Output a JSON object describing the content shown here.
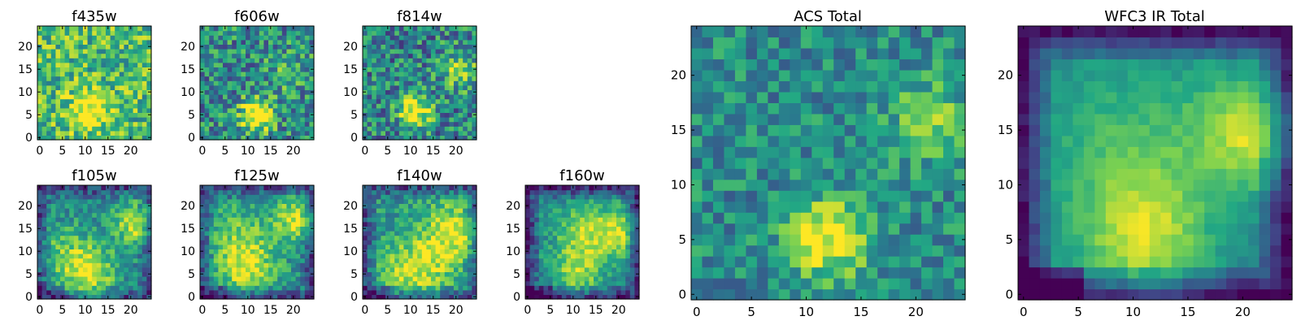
{
  "figure": {
    "colormap": "viridis",
    "colormap_stops": [
      "#440154",
      "#414487",
      "#2a788e",
      "#22a884",
      "#7ad151",
      "#fde725"
    ]
  },
  "chart_data": [
    {
      "type": "heatmap",
      "title": "f435w",
      "grid_size": 25,
      "xticks": [
        "0",
        "5",
        "10",
        "15",
        "20"
      ],
      "yticks": [
        "0",
        "5",
        "10",
        "15",
        "20"
      ],
      "xlim": [
        0,
        25
      ],
      "ylim": [
        0,
        25
      ],
      "grid": false,
      "hotspots": [
        [
          11,
          6,
          3,
          0.45
        ]
      ],
      "base": 0.68,
      "noise": 0.28,
      "edge_falloff": 0.0,
      "seed": 11
    },
    {
      "type": "heatmap",
      "title": "f606w",
      "grid_size": 25,
      "xticks": [
        "0",
        "5",
        "10",
        "15",
        "20"
      ],
      "yticks": [
        "0",
        "5",
        "10",
        "15",
        "20"
      ],
      "xlim": [
        0,
        25
      ],
      "ylim": [
        0,
        25
      ],
      "grid": false,
      "hotspots": [
        [
          12,
          5,
          2.5,
          0.7
        ],
        [
          19,
          15,
          3,
          0.2
        ]
      ],
      "base": 0.48,
      "noise": 0.3,
      "edge_falloff": 0.0,
      "seed": 23
    },
    {
      "type": "heatmap",
      "title": "f814w",
      "grid_size": 25,
      "xticks": [
        "0",
        "5",
        "10",
        "15",
        "20"
      ],
      "yticks": [
        "0",
        "5",
        "10",
        "15",
        "20"
      ],
      "xlim": [
        0,
        25
      ],
      "ylim": [
        0,
        25
      ],
      "grid": false,
      "hotspots": [
        [
          11,
          6,
          2.5,
          0.65
        ],
        [
          21,
          15,
          3,
          0.35
        ]
      ],
      "base": 0.45,
      "noise": 0.3,
      "edge_falloff": 0.0,
      "seed": 37
    },
    {
      "type": "heatmap",
      "title": "f105w",
      "grid_size": 25,
      "xticks": [
        "0",
        "5",
        "10",
        "15",
        "20"
      ],
      "yticks": [
        "0",
        "5",
        "10",
        "15",
        "20"
      ],
      "xlim": [
        0,
        25
      ],
      "ylim": [
        0,
        25
      ],
      "grid": false,
      "hotspots": [
        [
          11,
          5,
          4,
          0.45
        ],
        [
          21,
          16,
          3.5,
          0.45
        ],
        [
          6,
          10,
          5,
          0.25
        ]
      ],
      "base": 0.45,
      "noise": 0.18,
      "edge_falloff": 0.25,
      "seed": 41
    },
    {
      "type": "heatmap",
      "title": "f125w",
      "grid_size": 25,
      "xticks": [
        "0",
        "5",
        "10",
        "15",
        "20"
      ],
      "yticks": [
        "0",
        "5",
        "10",
        "15",
        "20"
      ],
      "xlim": [
        0,
        25
      ],
      "ylim": [
        0,
        25
      ],
      "grid": false,
      "hotspots": [
        [
          10,
          6,
          4,
          0.4
        ],
        [
          21,
          17,
          3.5,
          0.45
        ],
        [
          8,
          13,
          5,
          0.25
        ]
      ],
      "base": 0.5,
      "noise": 0.18,
      "edge_falloff": 0.3,
      "seed": 53
    },
    {
      "type": "heatmap",
      "title": "f140w",
      "grid_size": 25,
      "xticks": [
        "0",
        "5",
        "10",
        "15",
        "20"
      ],
      "yticks": [
        "0",
        "5",
        "10",
        "15",
        "20"
      ],
      "xlim": [
        0,
        25
      ],
      "ylim": [
        0,
        25
      ],
      "grid": false,
      "hotspots": [
        [
          11,
          6,
          5,
          0.4
        ],
        [
          20,
          14,
          5,
          0.45
        ]
      ],
      "base": 0.52,
      "noise": 0.18,
      "edge_falloff": 0.3,
      "seed": 67
    },
    {
      "type": "heatmap",
      "title": "f160w",
      "grid_size": 25,
      "xticks": [
        "0",
        "5",
        "10",
        "15",
        "20"
      ],
      "yticks": [
        "0",
        "5",
        "10",
        "15",
        "20"
      ],
      "xlim": [
        0,
        25
      ],
      "ylim": [
        0,
        25
      ],
      "grid": false,
      "hotspots": [
        [
          11,
          6,
          4,
          0.4
        ],
        [
          19,
          14,
          4,
          0.45
        ],
        [
          11,
          15,
          4,
          0.3
        ]
      ],
      "base": 0.45,
      "noise": 0.15,
      "edge_falloff": 0.35,
      "seed": 79
    },
    {
      "type": "heatmap",
      "title": "ACS Total",
      "grid_size": 25,
      "xticks": [
        "0",
        "5",
        "10",
        "15",
        "20"
      ],
      "yticks": [
        "0",
        "5",
        "10",
        "15",
        "20"
      ],
      "xlim": [
        0,
        25
      ],
      "ylim": [
        0,
        25
      ],
      "grid": false,
      "hotspots": [
        [
          12,
          5,
          2.5,
          0.55
        ],
        [
          21,
          16,
          2.5,
          0.3
        ]
      ],
      "base": 0.48,
      "noise": 0.2,
      "edge_falloff": 0.0,
      "seed": 97
    },
    {
      "type": "heatmap",
      "title": "WFC3 IR Total",
      "grid_size": 25,
      "xticks": [
        "0",
        "5",
        "10",
        "15",
        "20"
      ],
      "yticks": [
        "0",
        "5",
        "10",
        "15",
        "20"
      ],
      "xlim": [
        0,
        25
      ],
      "ylim": [
        0,
        25
      ],
      "grid": false,
      "hotspots": [
        [
          11,
          5,
          4,
          0.4
        ],
        [
          21,
          15,
          3.5,
          0.45
        ],
        [
          10,
          13,
          6,
          0.25
        ]
      ],
      "base": 0.45,
      "noise": 0.06,
      "edge_falloff": 0.45,
      "seed": 131
    }
  ]
}
